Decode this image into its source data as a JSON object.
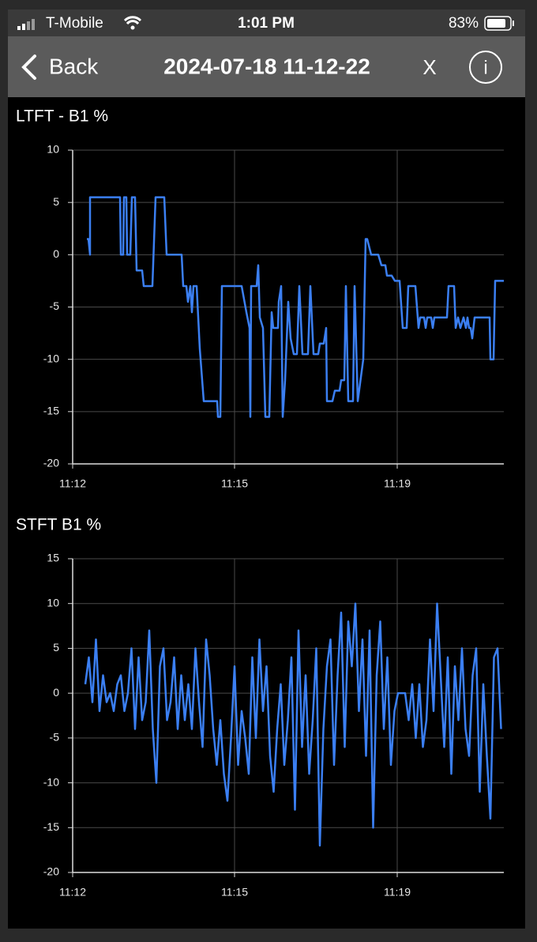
{
  "status_bar": {
    "carrier": "T-Mobile",
    "time": "1:01 PM",
    "battery": "83%"
  },
  "nav": {
    "back": "Back",
    "title": "2024-07-18 11-12-22",
    "close": "X",
    "info": "i"
  },
  "chart_data": [
    {
      "type": "line",
      "title": "LTFT - B1 %",
      "color": "#3b7ff2",
      "grid": true,
      "xlim": [
        0,
        546
      ],
      "xticks": [
        {
          "value": 0,
          "label": "11:12"
        },
        {
          "value": 205,
          "label": "11:15"
        },
        {
          "value": 411,
          "label": "11:19"
        }
      ],
      "ylim": [
        -20,
        10
      ],
      "yticks": [
        -20,
        -15,
        -10,
        -5,
        0,
        5,
        10
      ],
      "x": [
        18,
        20,
        22,
        22,
        60,
        61,
        64,
        65,
        68,
        69,
        73,
        75,
        79,
        81,
        88,
        90,
        101,
        105,
        116,
        119,
        138,
        140,
        144,
        146,
        149,
        151,
        153,
        157,
        161,
        166,
        183,
        184,
        187,
        189,
        214,
        220,
        224,
        225,
        226,
        233,
        235,
        237,
        241,
        244,
        249,
        252,
        254,
        260,
        261,
        264,
        266,
        269,
        273,
        276,
        280,
        284,
        287,
        291,
        298,
        301,
        305,
        311,
        313,
        318,
        321,
        322,
        329,
        332,
        338,
        340,
        344,
        346,
        349,
        355,
        357,
        361,
        368,
        371,
        373,
        378,
        387,
        391,
        396,
        398,
        404,
        408,
        414,
        418,
        423,
        425,
        434,
        438,
        440,
        445,
        447,
        449,
        454,
        456,
        458,
        474,
        476,
        483,
        485,
        488,
        491,
        495,
        498,
        500,
        502,
        504,
        506,
        509,
        528,
        529,
        533,
        535,
        546
      ],
      "values": [
        1.5,
        1.5,
        0,
        5.5,
        5.5,
        0,
        0,
        5.5,
        5.5,
        0,
        0,
        5.5,
        5.5,
        -1.5,
        -1.5,
        -3,
        -3,
        5.5,
        5.5,
        0,
        0,
        -3,
        -3,
        -4.5,
        -3,
        -5.5,
        -3,
        -3,
        -9,
        -14,
        -14,
        -15.5,
        -15.5,
        -3,
        -3,
        -5.5,
        -7,
        -15.5,
        -3,
        -3,
        -1,
        -6,
        -7,
        -15.5,
        -15.5,
        -5.5,
        -7,
        -7,
        -4.5,
        -3,
        -15.5,
        -12,
        -4.5,
        -8,
        -9.5,
        -9.5,
        -3,
        -9.5,
        -9.5,
        -3,
        -9.5,
        -9.5,
        -8.5,
        -8.5,
        -7,
        -14,
        -14,
        -13,
        -13,
        -12,
        -12,
        -3,
        -14,
        -14,
        -3,
        -14,
        -10,
        1.5,
        1.5,
        0,
        0,
        -1,
        -1,
        -2,
        -2,
        -2.5,
        -2.5,
        -7,
        -7,
        -3,
        -3,
        -7,
        -6,
        -6,
        -7,
        -6,
        -6,
        -7,
        -6,
        -6,
        -3,
        -3,
        -7,
        -6,
        -7,
        -6,
        -7,
        -6,
        -7,
        -7,
        -8,
        -6,
        -6,
        -10,
        -10,
        -2.5,
        -2.5
      ]
    },
    {
      "type": "line",
      "title": "STFT B1 %",
      "color": "#3b7ff2",
      "grid": true,
      "xlim": [
        0,
        546
      ],
      "xticks": [
        {
          "value": 0,
          "label": "11:12"
        },
        {
          "value": 205,
          "label": "11:15"
        },
        {
          "value": 411,
          "label": "11:19"
        }
      ],
      "ylim": [
        -20,
        15
      ],
      "yticks": [
        -20,
        -15,
        -10,
        -5,
        0,
        5,
        10,
        15
      ],
      "x": [
        16,
        20.5,
        25,
        29.5,
        34,
        38.5,
        43,
        47.5,
        52,
        56.5,
        61,
        65.5,
        70,
        74.5,
        79,
        83.5,
        88,
        92.5,
        97,
        101.5,
        106,
        110.5,
        115,
        119.5,
        124,
        128.5,
        133,
        137.5,
        142,
        146.5,
        151,
        155.5,
        160,
        164.5,
        169,
        173.5,
        178,
        182.5,
        187,
        191.5,
        196,
        200.5,
        205,
        209.5,
        214,
        218.5,
        223,
        227.5,
        232,
        236.5,
        241,
        245.5,
        250,
        254.5,
        259,
        263.5,
        268,
        272.5,
        277,
        281.5,
        286,
        290.5,
        295,
        299.5,
        304,
        308.5,
        313,
        317.5,
        322,
        326.5,
        331,
        335.5,
        340,
        344.5,
        349,
        353.5,
        358,
        362.5,
        367,
        371.5,
        376,
        380.5,
        385,
        389.5,
        394,
        398.5,
        403,
        407.5,
        412,
        416.5,
        421,
        425.5,
        430,
        434.5,
        439,
        443.5,
        448,
        452.5,
        457,
        461.5,
        466,
        470.5,
        475,
        479.5,
        484,
        488.5,
        493,
        497.5,
        502,
        506.5,
        511,
        515.5,
        520,
        524.5,
        529,
        533.5,
        538,
        542.5
      ],
      "values": [
        1,
        4,
        -1,
        6,
        -2,
        2,
        -1,
        0,
        -2,
        1,
        2,
        -2,
        0,
        5,
        -4,
        4,
        -3,
        -1,
        7,
        -4,
        -10,
        3,
        5,
        -3,
        -1,
        4,
        -4,
        2,
        -3,
        1,
        -4,
        5,
        -1,
        -6,
        6,
        2,
        -4,
        -8,
        -3,
        -9,
        -12,
        -5,
        3,
        -8,
        -2,
        -5,
        -9,
        4,
        -5,
        6,
        -2,
        3,
        -7,
        -11,
        -4,
        1,
        -8,
        -3,
        4,
        -13,
        7,
        -6,
        2,
        -9,
        -3,
        5,
        -17,
        -4,
        3,
        6,
        -8,
        2,
        9,
        -6,
        8,
        3,
        10,
        -2,
        6,
        -7,
        7,
        -15,
        2,
        8,
        -4,
        4,
        -8,
        -2,
        0,
        0,
        0,
        -3,
        1,
        -5,
        1,
        -6,
        -3,
        6,
        -2,
        10,
        2,
        -6,
        4,
        -9,
        3,
        -3,
        5,
        -4,
        -7,
        2,
        5,
        -11,
        1,
        -7,
        -14,
        4,
        5,
        -4
      ]
    }
  ]
}
